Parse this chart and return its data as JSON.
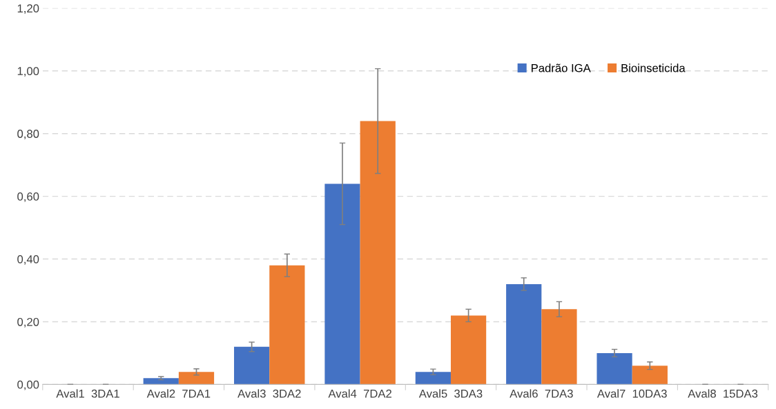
{
  "chart_data": {
    "type": "bar",
    "categories": [
      "Aval1  3DA1",
      "Aval2  7DA1",
      "Aval3  3DA2",
      "Aval4  7DA2",
      "Aval5  3DA3",
      "Aval6  7DA3",
      "Aval7  10DA3",
      "Aval8  15DA3"
    ],
    "series": [
      {
        "name": "Padrão IGA",
        "color": "#4472c4",
        "values": [
          0,
          0.02,
          0.12,
          0.64,
          0.04,
          0.32,
          0.1,
          0
        ],
        "errors": [
          0,
          0.005,
          0.015,
          0.13,
          0.009,
          0.02,
          0.012,
          0
        ]
      },
      {
        "name": "Bioinseticida",
        "color": "#ed7d31",
        "values": [
          0,
          0.04,
          0.38,
          0.84,
          0.22,
          0.24,
          0.06,
          0
        ],
        "errors": [
          0,
          0.01,
          0.036,
          0.167,
          0.02,
          0.024,
          0.012,
          0
        ]
      }
    ],
    "ylim": [
      0,
      1.2
    ],
    "yticks": [
      {
        "value": 0,
        "label": "0,00"
      },
      {
        "value": 0.2,
        "label": "0,20"
      },
      {
        "value": 0.4,
        "label": "0,40"
      },
      {
        "value": 0.6,
        "label": "0,60"
      },
      {
        "value": 0.8,
        "label": "0,80"
      },
      {
        "value": 1.0,
        "label": "1,00"
      },
      {
        "value": 1.2,
        "label": "1,20"
      }
    ],
    "grid": "y",
    "legend": "top right"
  }
}
